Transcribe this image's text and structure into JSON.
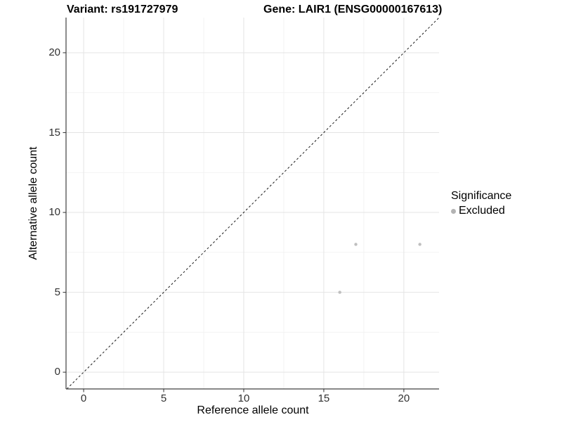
{
  "chart_data": {
    "type": "scatter",
    "title_left": "Variant: rs191727979",
    "title_right": "Gene: LAIR1 (ENSG00000167613)",
    "xlabel": "Reference allele count",
    "ylabel": "Alternative allele count",
    "xlim": [
      -1.1,
      22.2
    ],
    "ylim": [
      -1.05,
      22.2
    ],
    "x_ticks": [
      0,
      5,
      10,
      15,
      20
    ],
    "y_ticks": [
      0,
      5,
      10,
      15,
      20
    ],
    "x_minor_ticks": [
      2.5,
      7.5,
      12.5,
      17.5
    ],
    "y_minor_ticks": [
      2.5,
      7.5,
      12.5,
      17.5
    ],
    "grid": "major+minor",
    "legend": {
      "title": "Significance",
      "position": "right",
      "items": [
        {
          "label": "Excluded",
          "color": "#b3b3b3"
        }
      ]
    },
    "reference_line": {
      "type": "identity",
      "equation": "y = x",
      "style": "dashed"
    },
    "series": [
      {
        "name": "Excluded",
        "marker": "circle",
        "color": "#bfbfbf",
        "points": [
          [
            16,
            5
          ],
          [
            17,
            8
          ],
          [
            21,
            8
          ]
        ]
      }
    ]
  },
  "colors": {
    "background": "#ffffff",
    "grid_major": "#e4e4e4",
    "grid_minor": "#f2f2f2",
    "axis_line": "#404040",
    "tick_mark": "#404040",
    "tick_text": "#303030",
    "title_text": "#000000",
    "reference_line": "#1a1a1a"
  }
}
